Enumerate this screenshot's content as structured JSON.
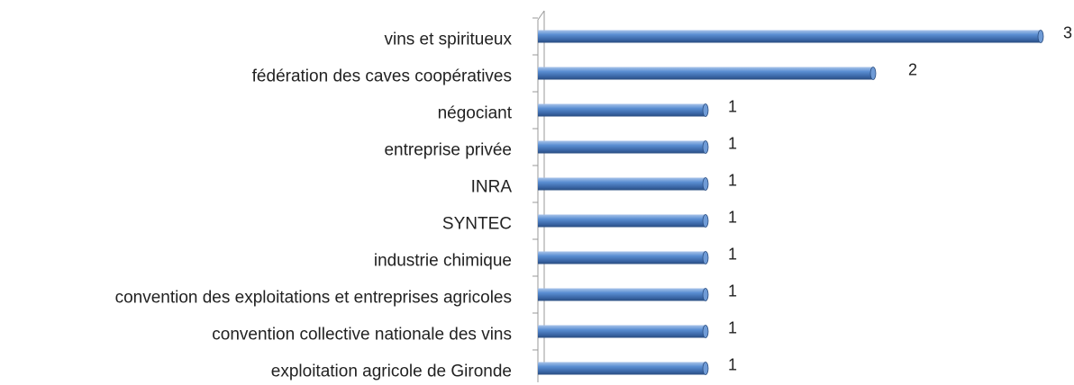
{
  "chart_data": {
    "type": "hbar",
    "categories": [
      "vins et spiritueux",
      "fédération des caves coopératives",
      "négociant",
      "entreprise privée",
      "INRA",
      "SYNTEC",
      "industrie chimique",
      "convention des exploitations et entreprises agricoles",
      "convention collective nationale des vins",
      "exploitation agricole de Gironde"
    ],
    "values": [
      3,
      2,
      1,
      1,
      1,
      1,
      1,
      1,
      1,
      1
    ],
    "color": "#4a7ebf"
  }
}
